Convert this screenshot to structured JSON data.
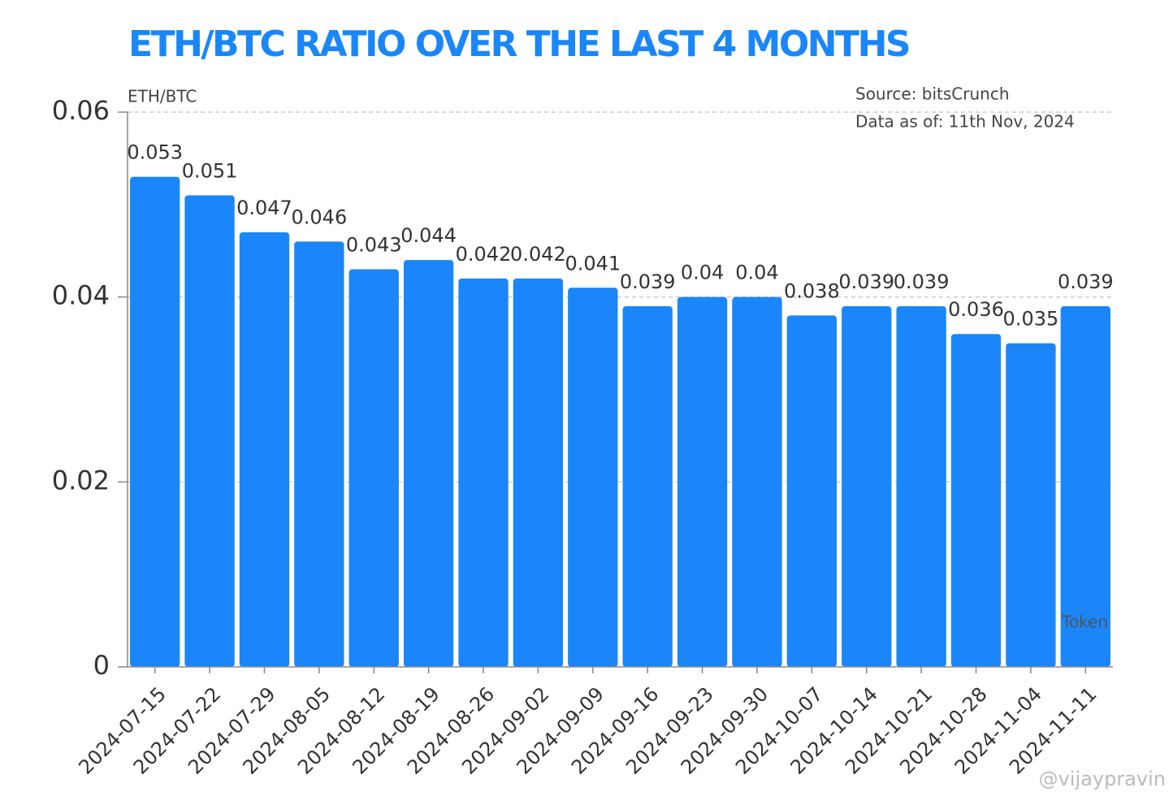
{
  "chart_data": {
    "type": "bar",
    "title": "ETH/BTC RATIO OVER THE LAST 4 MONTHS",
    "y_label": "ETH/BTC",
    "source": "Source: bitsCrunch",
    "date_note": "Data as of: 11th Nov, 2024",
    "watermark": "bitsCrunch",
    "credit": "@vijaypravin",
    "categories": [
      "2024-07-15",
      "2024-07-22",
      "2024-07-29",
      "2024-08-05",
      "2024-08-12",
      "2024-08-19",
      "2024-08-26",
      "2024-09-02",
      "2024-09-09",
      "2024-09-16",
      "2024-09-23",
      "2024-09-30",
      "2024-10-07",
      "2024-10-14",
      "2024-10-21",
      "2024-10-28",
      "2024-11-04",
      "2024-11-11"
    ],
    "series": [
      {
        "name": "Token",
        "color": "#1a86f9",
        "values": [
          0.053,
          0.051,
          0.047,
          0.046,
          0.043,
          0.044,
          0.042,
          0.042,
          0.041,
          0.039,
          0.04,
          0.04,
          0.038,
          0.039,
          0.039,
          0.036,
          0.035,
          0.039
        ]
      }
    ],
    "ylim": [
      0,
      0.06
    ],
    "yticks": [
      0,
      0.02,
      0.04,
      0.06
    ],
    "grid": true
  }
}
